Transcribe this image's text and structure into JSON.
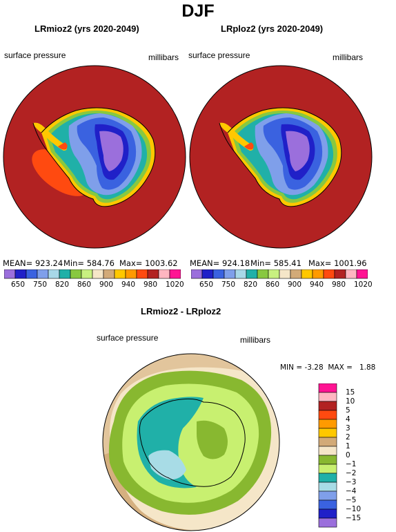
{
  "title": "DJF",
  "panels": [
    {
      "title": "LRmioz2 (yrs 2020-2049)",
      "variable": "surface pressure",
      "units": "millibars",
      "stats": {
        "mean": "MEAN= 923.24",
        "min": "Min= 584.76",
        "max": "Max= 1003.62"
      }
    },
    {
      "title": "LRploz2 (yrs 2020-2049)",
      "variable": "surface pressure",
      "units": "millibars",
      "stats": {
        "mean": "MEAN= 924.18",
        "min": "Min= 585.41",
        "max": "Max= 1001.96"
      }
    }
  ],
  "colorbar_top": {
    "colors": [
      "#9b6fdc",
      "#2020c8",
      "#3a62e0",
      "#7f9fea",
      "#a8d8e8",
      "#20b0a8",
      "#88c840",
      "#c8f080",
      "#f5e6c8",
      "#d2aa78",
      "#ffc800",
      "#ff9a00",
      "#ff4a10",
      "#b22222",
      "#ffb6c1",
      "#ff1493"
    ],
    "labels": [
      "650",
      "750",
      "820",
      "860",
      "900",
      "940",
      "980",
      "1020"
    ]
  },
  "diff_panel": {
    "title": "LRmioz2 - LRploz2",
    "variable": "surface pressure",
    "units": "millibars",
    "min_label": "MIN =",
    "min_value": "-3.28",
    "max_label": "MAX =",
    "max_value": "1.88"
  },
  "colorbar_diff": {
    "colors": [
      "#ff1493",
      "#ffb6c1",
      "#b22222",
      "#ff4a10",
      "#ff9a00",
      "#ffc800",
      "#d2aa78",
      "#f5e6c8",
      "#88b830",
      "#c8f070",
      "#20b0a8",
      "#a8dce6",
      "#7f9fea",
      "#3a62e0",
      "#2020c8",
      "#9b6fdc"
    ],
    "labels": [
      "15",
      "10",
      "5",
      "4",
      "3",
      "2",
      "1",
      "0",
      "−1",
      "−2",
      "−3",
      "−4",
      "−5",
      "−10",
      "−15"
    ]
  },
  "colors": {
    "background": "#8b1a1a",
    "ocean_mioz": "#b22222",
    "low_anomaly": "#ff4a10"
  }
}
